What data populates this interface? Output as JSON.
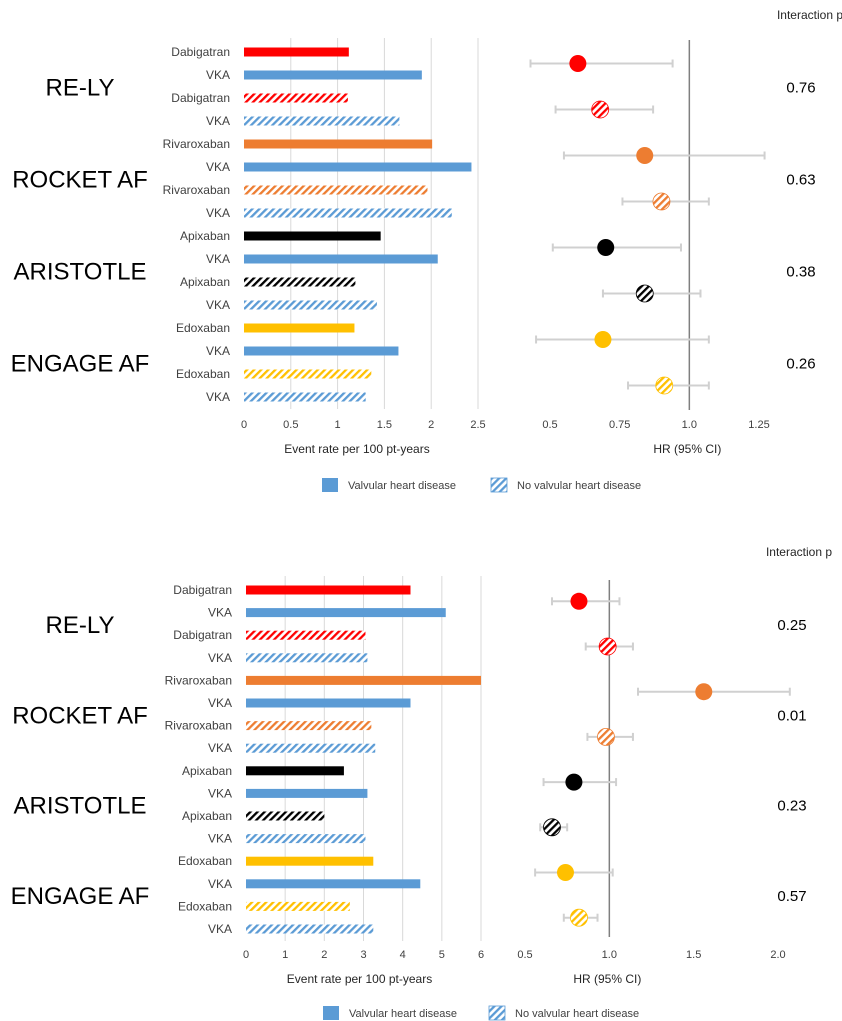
{
  "colors": {
    "Dabigatran": "#ff0000",
    "Rivaroxaban": "#ed7d31",
    "Apixaban": "#000000",
    "Edoxaban": "#ffc000",
    "VKA": "#5b9bd5",
    "ci_line": "#d0d0d0",
    "ref_line": "#7f7f7f",
    "grid": "#d9d9d9"
  },
  "legend": {
    "valvular": "Valvular heart disease",
    "no_valvular": "No valvular heart disease"
  },
  "chart_data": [
    {
      "type": "bar",
      "panel": "top",
      "xlabel": "Event rate per 100 pt-years",
      "xlim": [
        0,
        2.5
      ],
      "xticks": [
        "0",
        "0.5",
        "1",
        "1.5",
        "2",
        "2.5"
      ],
      "grid": true,
      "interaction_header": "Interaction p",
      "trials": [
        {
          "name": "RE-LY",
          "p": "0.76"
        },
        {
          "name": "ROCKET AF",
          "p": "0.63"
        },
        {
          "name": "ARISTOTLE",
          "p": "0.38"
        },
        {
          "name": "ENGAGE AF",
          "p": "0.26"
        }
      ],
      "rows": [
        {
          "label": "Dabigatran",
          "value": 1.12,
          "hatched": false
        },
        {
          "label": "VKA",
          "value": 1.9,
          "hatched": false
        },
        {
          "label": "Dabigatran",
          "value": 1.11,
          "hatched": true
        },
        {
          "label": "VKA",
          "value": 1.66,
          "hatched": true
        },
        {
          "label": "Rivaroxaban",
          "value": 2.01,
          "hatched": false
        },
        {
          "label": "VKA",
          "value": 2.43,
          "hatched": false
        },
        {
          "label": "Rivaroxaban",
          "value": 1.96,
          "hatched": true
        },
        {
          "label": "VKA",
          "value": 2.22,
          "hatched": true
        },
        {
          "label": "Apixaban",
          "value": 1.46,
          "hatched": false
        },
        {
          "label": "VKA",
          "value": 2.07,
          "hatched": false
        },
        {
          "label": "Apixaban",
          "value": 1.19,
          "hatched": true
        },
        {
          "label": "VKA",
          "value": 1.42,
          "hatched": true
        },
        {
          "label": "Edoxaban",
          "value": 1.18,
          "hatched": false
        },
        {
          "label": "VKA",
          "value": 1.65,
          "hatched": false
        },
        {
          "label": "Edoxaban",
          "value": 1.36,
          "hatched": true
        },
        {
          "label": "VKA",
          "value": 1.3,
          "hatched": true
        }
      ],
      "hr": {
        "xlabel": "HR (95% CI)",
        "xlim": [
          0.5,
          1.25
        ],
        "xticks": [
          "0.5",
          "0.75",
          "1.0",
          "1.25"
        ],
        "reference": 1.0,
        "points": [
          {
            "drug": "Dabigatran",
            "hatched": false,
            "hr": 0.6,
            "lo": 0.43,
            "hi": 0.94
          },
          {
            "drug": "Dabigatran",
            "hatched": true,
            "hr": 0.68,
            "lo": 0.52,
            "hi": 0.87
          },
          {
            "drug": "Rivaroxaban",
            "hatched": false,
            "hr": 0.84,
            "lo": 0.55,
            "hi": 1.27
          },
          {
            "drug": "Rivaroxaban",
            "hatched": true,
            "hr": 0.9,
            "lo": 0.76,
            "hi": 1.07
          },
          {
            "drug": "Apixaban",
            "hatched": false,
            "hr": 0.7,
            "lo": 0.51,
            "hi": 0.97
          },
          {
            "drug": "Apixaban",
            "hatched": true,
            "hr": 0.84,
            "lo": 0.69,
            "hi": 1.04
          },
          {
            "drug": "Edoxaban",
            "hatched": false,
            "hr": 0.69,
            "lo": 0.45,
            "hi": 1.07
          },
          {
            "drug": "Edoxaban",
            "hatched": true,
            "hr": 0.91,
            "lo": 0.78,
            "hi": 1.07
          }
        ]
      }
    },
    {
      "type": "bar",
      "panel": "bottom",
      "xlabel": "Event rate per 100 pt-years",
      "xlim": [
        0,
        6
      ],
      "xticks": [
        "0",
        "1",
        "2",
        "3",
        "4",
        "5",
        "6"
      ],
      "grid": true,
      "interaction_header": "Interaction p",
      "trials": [
        {
          "name": "RE-LY",
          "p": "0.25"
        },
        {
          "name": "ROCKET AF",
          "p": "0.01"
        },
        {
          "name": "ARISTOTLE",
          "p": "0.23"
        },
        {
          "name": "ENGAGE AF",
          "p": "0.57"
        }
      ],
      "rows": [
        {
          "label": "Dabigatran",
          "value": 4.2,
          "hatched": false
        },
        {
          "label": "VKA",
          "value": 5.1,
          "hatched": false
        },
        {
          "label": "Dabigatran",
          "value": 3.05,
          "hatched": true
        },
        {
          "label": "VKA",
          "value": 3.1,
          "hatched": true
        },
        {
          "label": "Rivaroxaban",
          "value": 6.0,
          "hatched": false
        },
        {
          "label": "VKA",
          "value": 4.2,
          "hatched": false
        },
        {
          "label": "Rivaroxaban",
          "value": 3.2,
          "hatched": true
        },
        {
          "label": "VKA",
          "value": 3.3,
          "hatched": true
        },
        {
          "label": "Apixaban",
          "value": 2.5,
          "hatched": false
        },
        {
          "label": "VKA",
          "value": 3.1,
          "hatched": false
        },
        {
          "label": "Apixaban",
          "value": 2.0,
          "hatched": true
        },
        {
          "label": "VKA",
          "value": 3.05,
          "hatched": true
        },
        {
          "label": "Edoxaban",
          "value": 3.25,
          "hatched": false
        },
        {
          "label": "VKA",
          "value": 4.45,
          "hatched": false
        },
        {
          "label": "Edoxaban",
          "value": 2.65,
          "hatched": true
        },
        {
          "label": "VKA",
          "value": 3.25,
          "hatched": true
        }
      ],
      "hr": {
        "xlabel": "HR (95% CI)",
        "xlim": [
          0.5,
          2.0
        ],
        "xticks": [
          "0.5",
          "1.0",
          "1.5",
          "2.0"
        ],
        "reference": 1.0,
        "points": [
          {
            "drug": "Dabigatran",
            "hatched": false,
            "hr": 0.82,
            "lo": 0.66,
            "hi": 1.06
          },
          {
            "drug": "Dabigatran",
            "hatched": true,
            "hr": 0.99,
            "lo": 0.86,
            "hi": 1.14
          },
          {
            "drug": "Rivaroxaban",
            "hatched": false,
            "hr": 1.56,
            "lo": 1.17,
            "hi": 2.07
          },
          {
            "drug": "Rivaroxaban",
            "hatched": true,
            "hr": 0.98,
            "lo": 0.87,
            "hi": 1.14
          },
          {
            "drug": "Apixaban",
            "hatched": false,
            "hr": 0.79,
            "lo": 0.61,
            "hi": 1.04
          },
          {
            "drug": "Apixaban",
            "hatched": true,
            "hr": 0.66,
            "lo": 0.59,
            "hi": 0.75
          },
          {
            "drug": "Edoxaban",
            "hatched": false,
            "hr": 0.74,
            "lo": 0.56,
            "hi": 1.02
          },
          {
            "drug": "Edoxaban",
            "hatched": true,
            "hr": 0.82,
            "lo": 0.73,
            "hi": 0.93
          }
        ]
      }
    }
  ]
}
